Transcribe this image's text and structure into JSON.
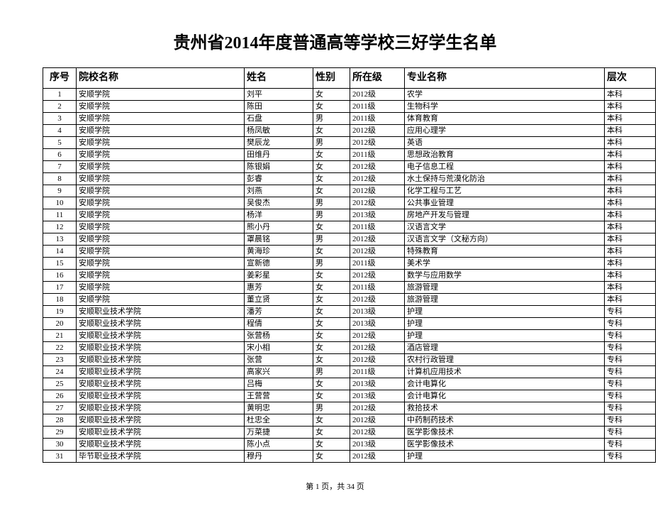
{
  "title": "贵州省2014年度普通高等学校三好学生名单",
  "columns": [
    "序号",
    "院校名称",
    "姓名",
    "性别",
    "所在级",
    "专业名称",
    "层次"
  ],
  "rows": [
    [
      "1",
      "安顺学院",
      "刘平",
      "女",
      "2012级",
      "农学",
      "本科"
    ],
    [
      "2",
      "安顺学院",
      "陈田",
      "女",
      "2011级",
      "生物科学",
      "本科"
    ],
    [
      "3",
      "安顺学院",
      "石盘",
      "男",
      "2011级",
      "体育教育",
      "本科"
    ],
    [
      "4",
      "安顺学院",
      "杨凤敏",
      "女",
      "2012级",
      "应用心理学",
      "本科"
    ],
    [
      "5",
      "安顺学院",
      "樊辰龙",
      "男",
      "2012级",
      "英语",
      "本科"
    ],
    [
      "6",
      "安顺学院",
      "田维丹",
      "女",
      "2011级",
      "思想政治教育",
      "本科"
    ],
    [
      "7",
      "安顺学院",
      "陈银娟",
      "女",
      "2012级",
      "电子信息工程",
      "本科"
    ],
    [
      "8",
      "安顺学院",
      "彭睿",
      "女",
      "2012级",
      "水土保持与荒漠化防治",
      "本科"
    ],
    [
      "9",
      "安顺学院",
      "刘燕",
      "女",
      "2012级",
      "化学工程与工艺",
      "本科"
    ],
    [
      "10",
      "安顺学院",
      "吴俊杰",
      "男",
      "2012级",
      "公共事业管理",
      "本科"
    ],
    [
      "11",
      "安顺学院",
      "杨洋",
      "男",
      "2013级",
      "房地产开发与管理",
      "本科"
    ],
    [
      "12",
      "安顺学院",
      "熊小丹",
      "女",
      "2011级",
      "汉语言文学",
      "本科"
    ],
    [
      "13",
      "安顺学院",
      "罩晨铭",
      "男",
      "2012级",
      "汉语言文学（文秘方向）",
      "本科"
    ],
    [
      "14",
      "安顺学院",
      "黄海珍",
      "女",
      "2012级",
      "特殊教育",
      "本科"
    ],
    [
      "15",
      "安顺学院",
      "宣新德",
      "男",
      "2011级",
      "美术学",
      "本科"
    ],
    [
      "16",
      "安顺学院",
      "姜彩星",
      "女",
      "2012级",
      "数学与应用数学",
      "本科"
    ],
    [
      "17",
      "安顺学院",
      "惠芳",
      "女",
      "2011级",
      "旅游管理",
      "本科"
    ],
    [
      "18",
      "安顺学院",
      "董立贤",
      "女",
      "2012级",
      "旅游管理",
      "本科"
    ],
    [
      "19",
      "安顺职业技术学院",
      "潘芳",
      "女",
      "2013级",
      "护理",
      "专科"
    ],
    [
      "20",
      "安顺职业技术学院",
      "程倩",
      "女",
      "2013级",
      "护理",
      "专科"
    ],
    [
      "21",
      "安顺职业技术学院",
      "张营杨",
      "女",
      "2012级",
      "护理",
      "专科"
    ],
    [
      "22",
      "安顺职业技术学院",
      "宋小相",
      "女",
      "2012级",
      "酒店管理",
      "专科"
    ],
    [
      "23",
      "安顺职业技术学院",
      "张营",
      "女",
      "2012级",
      "农村行政管理",
      "专科"
    ],
    [
      "24",
      "安顺职业技术学院",
      "高家兴",
      "男",
      "2011级",
      "计算机应用技术",
      "专科"
    ],
    [
      "25",
      "安顺职业技术学院",
      "吕梅",
      "女",
      "2013级",
      "会计电算化",
      "专科"
    ],
    [
      "26",
      "安顺职业技术学院",
      "王营营",
      "女",
      "2013级",
      "会计电算化",
      "专科"
    ],
    [
      "27",
      "安顺职业技术学院",
      "黄明忠",
      "男",
      "2012级",
      "救拾技术",
      "专科"
    ],
    [
      "28",
      "安顺职业技术学院",
      "杜忠全",
      "女",
      "2012级",
      "中药制药技术",
      "专科"
    ],
    [
      "29",
      "安顺职业技术学院",
      "万菜捷",
      "女",
      "2012级",
      "医学影像技术",
      "专科"
    ],
    [
      "30",
      "安顺职业技术学院",
      "陈小点",
      "女",
      "2013级",
      "医学影像技术",
      "专科"
    ],
    [
      "31",
      "毕节职业技术学院",
      "穆丹",
      "女",
      "2012级",
      "护理",
      "专科"
    ]
  ],
  "footer": "第 1 页，共 34 页"
}
